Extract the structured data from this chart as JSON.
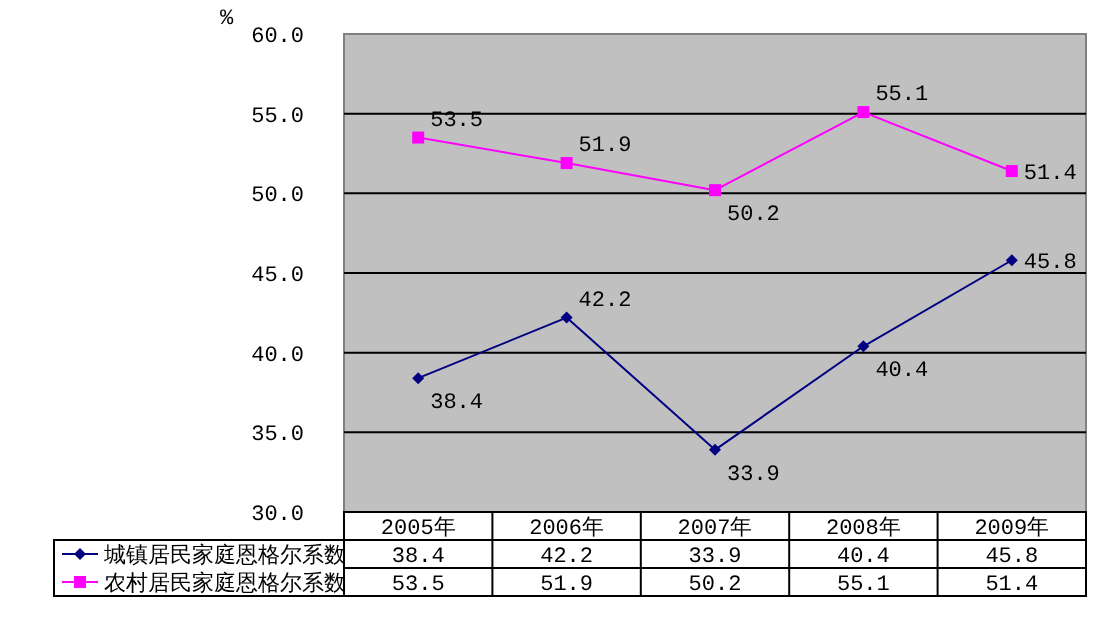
{
  "chart_data": {
    "type": "line",
    "ylabel": "%",
    "categories": [
      "2005年",
      "2006年",
      "2007年",
      "2008年",
      "2009年"
    ],
    "series": [
      {
        "name": "城镇居民家庭恩格尔系数",
        "color": "#000080",
        "marker": "diamond",
        "values": [
          38.4,
          42.2,
          33.9,
          40.4,
          45.8
        ],
        "value_labels": [
          "38.4",
          "42.2",
          "33.9",
          "40.4",
          "45.8"
        ]
      },
      {
        "name": "农村居民家庭恩格尔系数",
        "color": "#ff00ff",
        "marker": "square",
        "values": [
          53.5,
          51.9,
          50.2,
          55.1,
          51.4
        ],
        "value_labels": [
          "53.5",
          "51.9",
          "50.2",
          "55.1",
          "51.4"
        ]
      }
    ],
    "ylim": [
      30,
      60
    ],
    "yticks": [
      {
        "value": 30,
        "label": "30.0"
      },
      {
        "value": 35,
        "label": "35.0"
      },
      {
        "value": 40,
        "label": "40.0"
      },
      {
        "value": 45,
        "label": "45.0"
      },
      {
        "value": 50,
        "label": "50.0"
      },
      {
        "value": 55,
        "label": "55.0"
      },
      {
        "value": 60,
        "label": "60.0"
      }
    ],
    "annotations": [
      {
        "text": "38.4",
        "x": "2005年",
        "y": 38.4
      },
      {
        "text": "42.2",
        "x": "2006年",
        "y": 42.2
      },
      {
        "text": "33.9",
        "x": "2007年",
        "y": 33.9
      },
      {
        "text": "40.4",
        "x": "2008年",
        "y": 40.4
      },
      {
        "text": "45.8",
        "x": "2009年",
        "y": 45.8
      },
      {
        "text": "53.5",
        "x": "2005年",
        "y": 53.5
      },
      {
        "text": "51.9",
        "x": "2006年",
        "y": 51.9
      },
      {
        "text": "50.2",
        "x": "2007年",
        "y": 50.2
      },
      {
        "text": "55.1",
        "x": "2008年",
        "y": 55.1
      },
      {
        "text": "51.4",
        "x": "2009年",
        "y": 51.4
      }
    ],
    "grid": "y",
    "legend": "bottom"
  }
}
